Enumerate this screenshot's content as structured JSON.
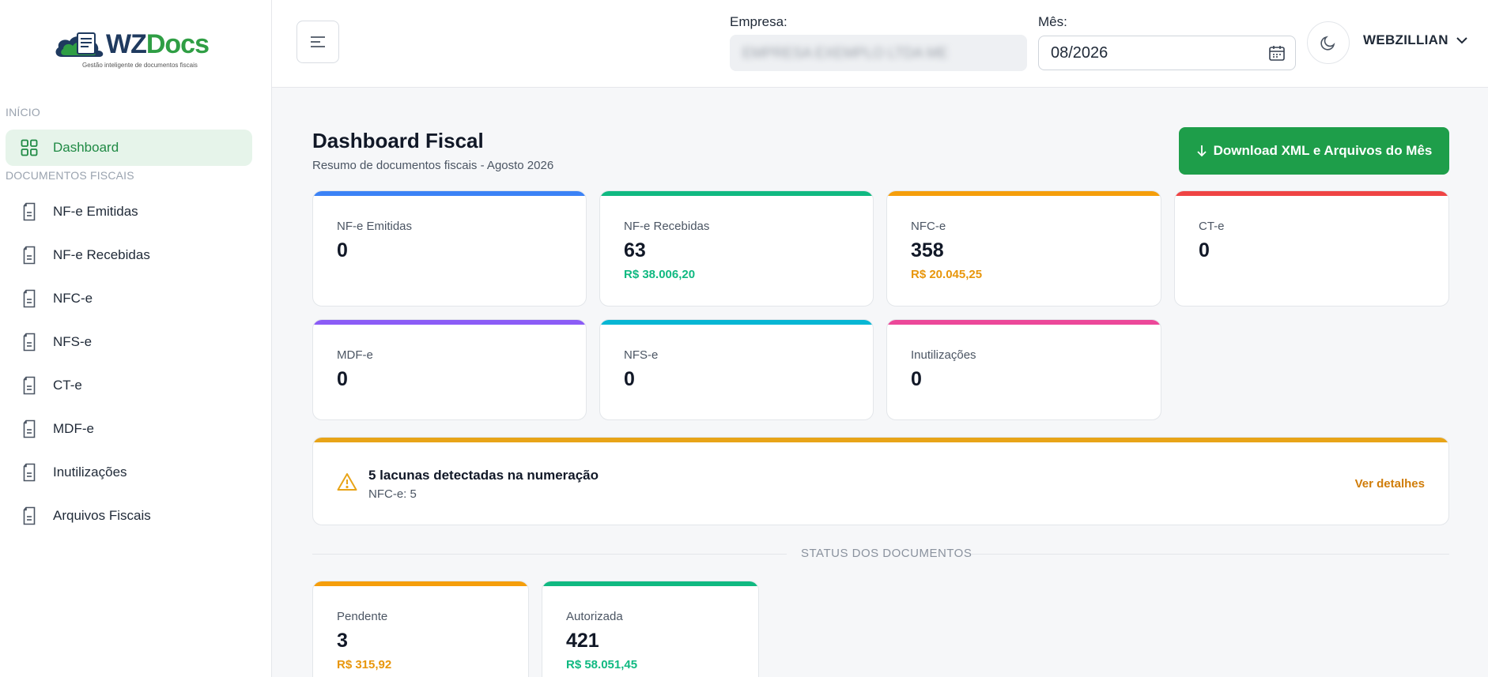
{
  "brand": {
    "name_part1": "WZ",
    "name_part2": "Docs",
    "tagline": "Gestão inteligente de documentos fiscais",
    "colors": {
      "primary": "#1e9e4a",
      "navy": "#1f3a5f"
    }
  },
  "sidebar": {
    "section_inicio": "INÍCIO",
    "section_docs": "DOCUMENTOS FISCAIS",
    "dashboard_label": "Dashboard",
    "items": [
      {
        "label": "NF-e Emitidas",
        "icon": "document-icon"
      },
      {
        "label": "NF-e Recebidas",
        "icon": "document-icon"
      },
      {
        "label": "NFC-e",
        "icon": "document-icon"
      },
      {
        "label": "NFS-e",
        "icon": "document-icon"
      },
      {
        "label": "CT-e",
        "icon": "document-icon"
      },
      {
        "label": "MDF-e",
        "icon": "document-icon"
      },
      {
        "label": "Inutilizações",
        "icon": "document-icon"
      },
      {
        "label": "Arquivos Fiscais",
        "icon": "document-icon"
      }
    ]
  },
  "header": {
    "empresa_label": "Empresa:",
    "empresa_value": "EMPRESA EXEMPLO LTDA ME",
    "mes_label": "Mês:",
    "mes_value": "08/2026",
    "user_name": "WEBZILLIAN"
  },
  "main": {
    "title": "Dashboard Fiscal",
    "subtitle": "Resumo de documentos fiscais - Agosto 2026",
    "download_label": "Download XML e Arquivos do Mês",
    "cards": [
      {
        "label": "NF-e Emitidas",
        "value": "0",
        "amount": "",
        "color": "#3b82f6"
      },
      {
        "label": "NF-e Recebidas",
        "value": "63",
        "amount": "R$ 38.006,20",
        "color": "#10b981"
      },
      {
        "label": "NFC-e",
        "value": "358",
        "amount": "R$ 20.045,25",
        "color": "#f59e0b"
      },
      {
        "label": "CT-e",
        "value": "0",
        "amount": "",
        "color": "#ef4444"
      },
      {
        "label": "MDF-e",
        "value": "0",
        "amount": "",
        "color": "#8b5cf6"
      },
      {
        "label": "NFS-e",
        "value": "0",
        "amount": "",
        "color": "#06b6d4"
      },
      {
        "label": "Inutilizações",
        "value": "0",
        "amount": "",
        "color": "#ec4899"
      }
    ],
    "alert": {
      "title": "5 lacunas detectadas na numeração",
      "detail": "NFC-e: 5",
      "link": "Ver detalhes"
    },
    "status_heading": "STATUS DOS DOCUMENTOS",
    "status_cards": [
      {
        "label": "Pendente",
        "value": "3",
        "amount": "R$ 315,92",
        "color": "#f59e0b"
      },
      {
        "label": "Autorizada",
        "value": "421",
        "amount": "R$ 58.051,45",
        "color": "#10b981"
      }
    ]
  }
}
